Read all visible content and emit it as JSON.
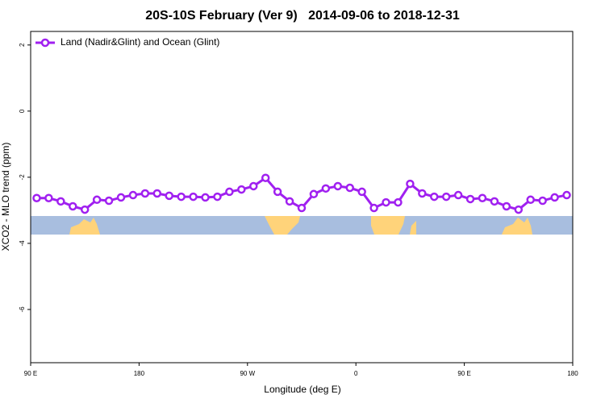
{
  "chart_data": {
    "type": "line",
    "title": "20S-10S February (Ver 9)   2014-09-06 to 2018-12-31",
    "xlabel": "Longitude (deg E)",
    "ylabel": "XCO2 - MLO trend (ppm)",
    "x": [
      95,
      105,
      115,
      125,
      135,
      145,
      155,
      165,
      175,
      185,
      195,
      205,
      215,
      225,
      235,
      245,
      255,
      265,
      275,
      285,
      295,
      305,
      315,
      325,
      335,
      345,
      355,
      365,
      375,
      385,
      395,
      405,
      415,
      425,
      435,
      445,
      455,
      465,
      475,
      485,
      495,
      505,
      515,
      525,
      535
    ],
    "series": [
      {
        "name": "Land (Nadir&Glint) and Ocean (Glint)",
        "color": "#a020f0",
        "values": [
          -2.63,
          -2.63,
          -2.73,
          -2.88,
          -2.98,
          -2.68,
          -2.71,
          -2.61,
          -2.54,
          -2.49,
          -2.49,
          -2.56,
          -2.59,
          -2.59,
          -2.61,
          -2.59,
          -2.44,
          -2.37,
          -2.27,
          -2.02,
          -2.44,
          -2.73,
          -2.93,
          -2.51,
          -2.34,
          -2.27,
          -2.32,
          -2.44,
          -2.93,
          -2.76,
          -2.76,
          -2.2,
          -2.49,
          -2.59,
          -2.59,
          -2.54,
          -2.66,
          -2.63,
          -2.73,
          -2.88,
          -2.98,
          -2.68,
          -2.71,
          -2.61,
          -2.54
        ]
      }
    ],
    "xlim": [
      90,
      540
    ],
    "xticks": [
      {
        "value": 90,
        "label": "90 E"
      },
      {
        "value": 180,
        "label": "180"
      },
      {
        "value": 270,
        "label": "90 W"
      },
      {
        "value": 360,
        "label": "0"
      },
      {
        "value": 450,
        "label": "90 E"
      },
      {
        "value": 540,
        "label": "180"
      }
    ],
    "ylim": [
      -7.61,
      2.41
    ],
    "yticks": [
      2,
      0,
      -2,
      -4,
      -6
    ],
    "legend": "top-left"
  }
}
